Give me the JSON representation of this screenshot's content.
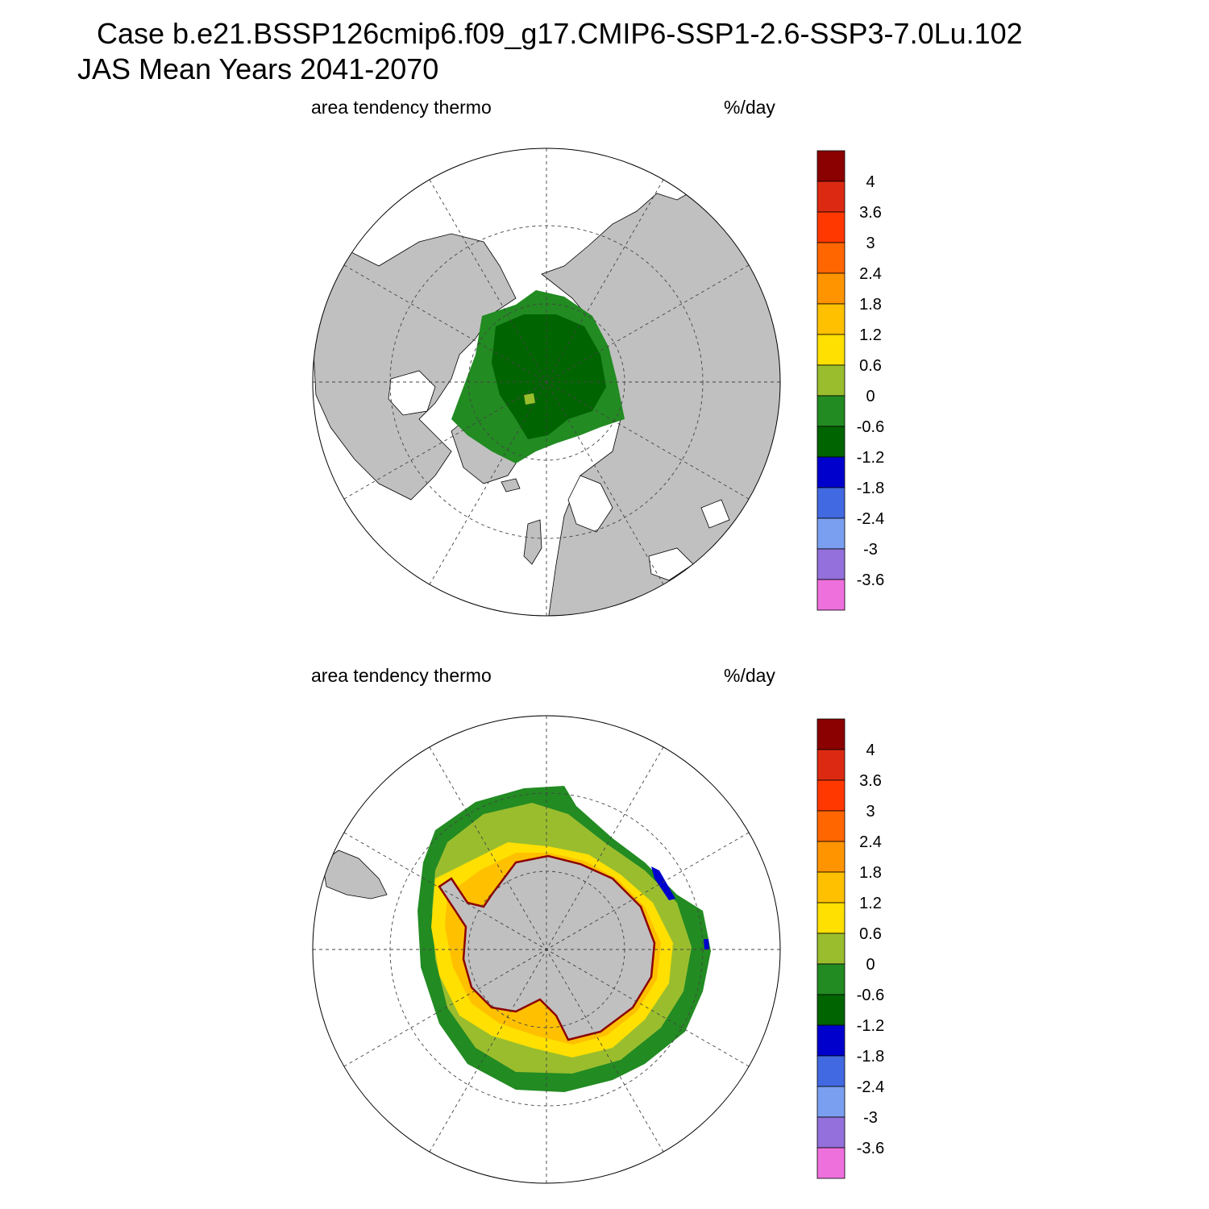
{
  "header": {
    "title_line1": "Case b.e21.BSSP126cmip6.f09_g17.CMIP6-SSP1-2.6-SSP3-7.0Lu.102",
    "title_line2": "JAS Mean   Years 2041-2070"
  },
  "colorbar": {
    "levels": [
      "4",
      "3.6",
      "3",
      "2.4",
      "1.8",
      "1.2",
      "0.6",
      "0",
      "-0.6",
      "-1.2",
      "-1.8",
      "-2.4",
      "-3",
      "-3.6"
    ],
    "colors": [
      "#8b0000",
      "#dc2a12",
      "#ff3800",
      "#ff6600",
      "#ff9400",
      "#ffc000",
      "#ffe000",
      "#9abd2e",
      "#228b22",
      "#006400",
      "#0000cd",
      "#4169e1",
      "#7b9ff0",
      "#9370db",
      "#ee70dc"
    ]
  },
  "colors": {
    "land": "#c0c0c0",
    "ocean": "#ffffff"
  },
  "chart_data": [
    {
      "type": "heatmap",
      "projection": "polar-stereographic-north",
      "variable": "area tendency thermo",
      "units": "%/day",
      "description_of_field": "values mostly between -1.2 and -0.6 over central Arctic ice pack, -0.6 to 0 on ice margins",
      "levels": [
        -3.6,
        -3,
        -2.4,
        -1.8,
        -1.2,
        -0.6,
        0,
        0.6,
        1.2,
        1.8,
        2.4,
        3,
        3.6,
        4
      ]
    },
    {
      "type": "heatmap",
      "projection": "polar-stereographic-south",
      "variable": "area tendency thermo",
      "units": "%/day",
      "description_of_field": "0.6 to 1.2 near Antarctic coast, 0 to 0.6 mid-pack, -0.6 to 0 at outer ice edge, small -1.8 to -1.2 patches near 90E",
      "levels": [
        -3.6,
        -3,
        -2.4,
        -1.8,
        -1.2,
        -0.6,
        0,
        0.6,
        1.2,
        1.8,
        2.4,
        3,
        3.6,
        4
      ]
    }
  ]
}
